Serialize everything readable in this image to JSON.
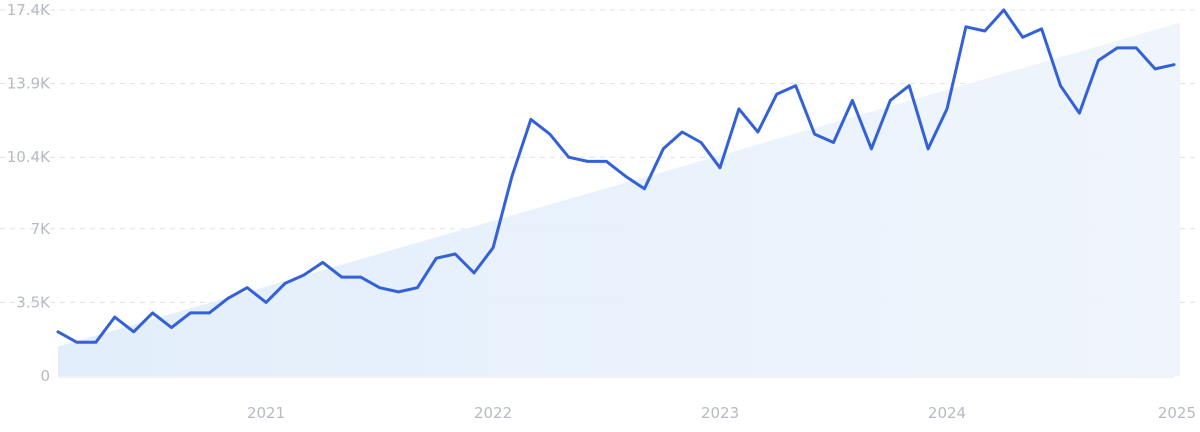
{
  "chart_data": {
    "type": "line",
    "ylim": [
      0,
      17400
    ],
    "yticks": [
      {
        "value": 0,
        "label": "0"
      },
      {
        "value": 3500,
        "label": "3.5K"
      },
      {
        "value": 7000,
        "label": "7K"
      },
      {
        "value": 10400,
        "label": "10.4K"
      },
      {
        "value": 13900,
        "label": "13.9K"
      },
      {
        "value": 17400,
        "label": "17.4K"
      }
    ],
    "xlim": [
      "2020-02",
      "2025-01"
    ],
    "xticks": [
      {
        "value": "2021-01",
        "label": "2021"
      },
      {
        "value": "2022-01",
        "label": "2022"
      },
      {
        "value": "2023-01",
        "label": "2023"
      },
      {
        "value": "2024-01",
        "label": "2024"
      },
      {
        "value": "2025-01",
        "label": "2025"
      }
    ],
    "grid": true,
    "trend": {
      "start": 1400,
      "end": 16800
    },
    "colors": {
      "line": "#3361d8",
      "trend_fill": "#e6f0fc",
      "grid": "#dde1e8",
      "tick_text": "#b6bac3"
    },
    "series": [
      {
        "x": [
          "2020-02",
          "2020-03",
          "2020-04",
          "2020-05",
          "2020-06",
          "2020-07",
          "2020-08",
          "2020-09",
          "2020-10",
          "2020-11",
          "2020-12",
          "2021-01",
          "2021-02",
          "2021-03",
          "2021-04",
          "2021-05",
          "2021-06",
          "2021-07",
          "2021-08",
          "2021-09",
          "2021-10",
          "2021-11",
          "2021-12",
          "2022-01",
          "2022-02",
          "2022-03",
          "2022-04",
          "2022-05",
          "2022-06",
          "2022-07",
          "2022-08",
          "2022-09",
          "2022-10",
          "2022-11",
          "2022-12",
          "2023-01",
          "2023-02",
          "2023-03",
          "2023-04",
          "2023-05",
          "2023-06",
          "2023-07",
          "2023-08",
          "2023-09",
          "2023-10",
          "2023-11",
          "2023-12",
          "2024-01",
          "2024-02",
          "2024-03",
          "2024-04",
          "2024-05",
          "2024-06",
          "2024-07",
          "2024-08",
          "2024-09",
          "2024-10",
          "2024-11",
          "2024-12",
          "2025-01"
        ],
        "values": [
          2100,
          1600,
          1600,
          2800,
          2100,
          3000,
          2300,
          3000,
          3000,
          3700,
          4200,
          3500,
          4400,
          4800,
          5400,
          4700,
          4700,
          4200,
          4000,
          4200,
          5600,
          5800,
          4900,
          6100,
          9500,
          12200,
          11500,
          10400,
          10200,
          10200,
          9500,
          8900,
          10800,
          11600,
          11100,
          9900,
          12700,
          11600,
          13400,
          13800,
          11500,
          11100,
          13100,
          10800,
          13100,
          13800,
          10800,
          12700,
          16600,
          16400,
          17400,
          16100,
          16500,
          13800,
          12500,
          15000,
          15600,
          15600,
          14600,
          14800
        ]
      }
    ]
  }
}
